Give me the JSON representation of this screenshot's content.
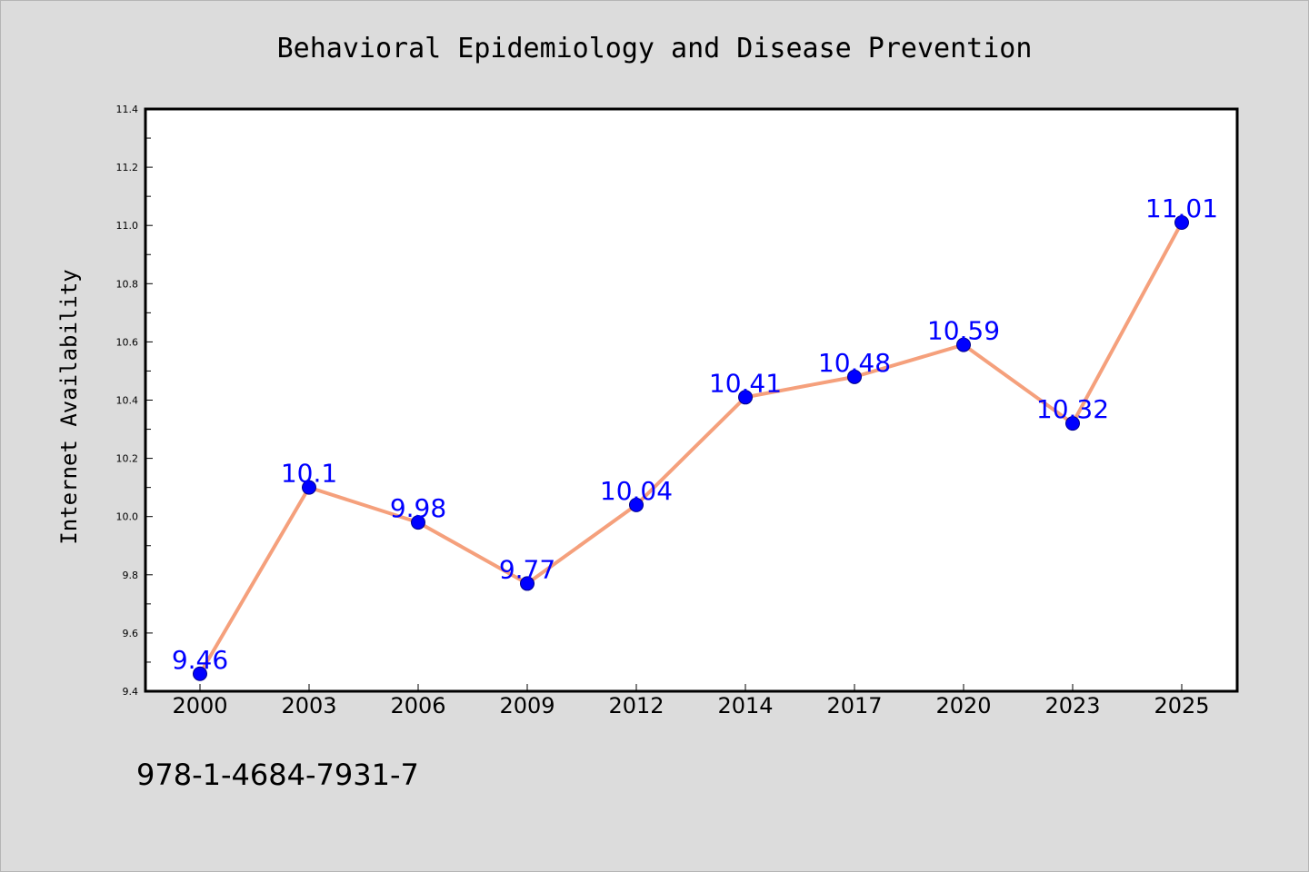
{
  "chart_data": {
    "type": "line",
    "title": "Behavioral Epidemiology and Disease Prevention",
    "xlabel": "",
    "ylabel": "Internet Availability",
    "categories": [
      "2000",
      "2003",
      "2006",
      "2009",
      "2012",
      "2014",
      "2017",
      "2020",
      "2023",
      "2025"
    ],
    "series": [
      {
        "values": [
          9.46,
          10.1,
          9.98,
          9.77,
          10.04,
          10.41,
          10.48,
          10.59,
          10.32,
          11.01
        ]
      }
    ],
    "data_labels": [
      "9.46",
      "10.1",
      "9.98",
      "9.77",
      "10.04",
      "10.41",
      "10.48",
      "10.59",
      "10.32",
      "11.01"
    ],
    "ylim": [
      9.4,
      11.4
    ],
    "y_ticks": [
      "9.4",
      "9.6",
      "9.8",
      "10.0",
      "10.2",
      "10.4",
      "10.6",
      "10.8",
      "11.0",
      "11.2",
      "11.4"
    ],
    "grid": false,
    "legend": "none",
    "colors": {
      "line": "#f5a07c",
      "marker": "#0000ff",
      "label": "#0000ff",
      "background": "#dcdcdc",
      "plot_background": "#ffffff"
    }
  },
  "footnote": "978-1-4684-7931-7"
}
